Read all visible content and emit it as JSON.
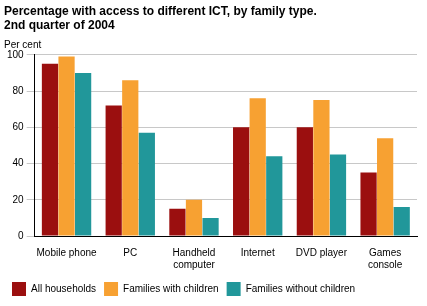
{
  "chart_data": {
    "type": "bar",
    "title": "Percentage with access to different ICT, by family type.",
    "subtitle": "2nd quarter of 2004",
    "y_label": "Per cent",
    "categories": [
      "Mobile phone",
      "PC",
      "Handheld computer",
      "Internet",
      "DVD player",
      "Games console"
    ],
    "series": [
      {
        "name": "All households",
        "color": "#9b0f0f",
        "values": [
          95,
          72,
          15,
          60,
          60,
          35
        ]
      },
      {
        "name": "Families with children",
        "color": "#f7a132",
        "values": [
          99,
          86,
          20,
          76,
          75,
          54
        ]
      },
      {
        "name": "Families without children",
        "color": "#21979a",
        "values": [
          90,
          57,
          10,
          44,
          45,
          16
        ]
      }
    ],
    "ylim": [
      0,
      100
    ],
    "yticks": [
      0,
      20,
      40,
      60,
      80,
      100
    ],
    "grid": true,
    "legend": "bottom"
  }
}
